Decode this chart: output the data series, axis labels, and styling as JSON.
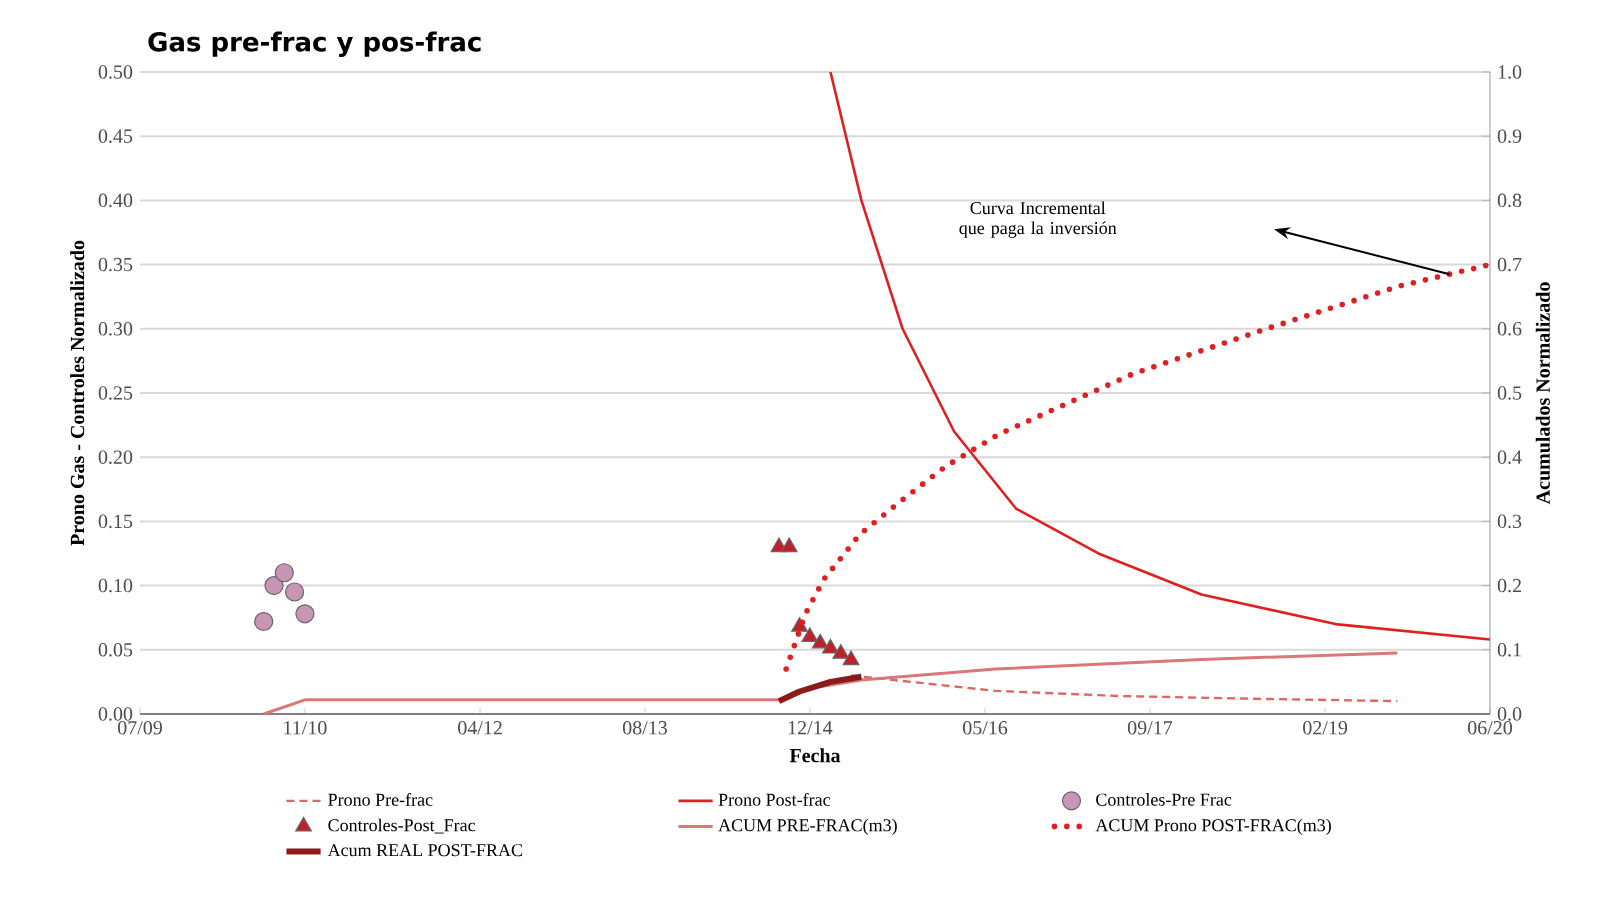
{
  "chart_data": {
    "type": "line",
    "title": "Gas pre-frac y pos-frac",
    "xlabel": "Fecha",
    "ylabel": "Prono Gas - Controles Normalizado",
    "y2label": "Acumulados Normalizado",
    "xlim": [
      "2009-07",
      "2020-06"
    ],
    "xticks": [
      {
        "value": "2009-07",
        "label": "07/09"
      },
      {
        "value": "2010-11",
        "label": "11/10"
      },
      {
        "value": "2012-04",
        "label": "04/12"
      },
      {
        "value": "2013-08",
        "label": "08/13"
      },
      {
        "value": "2014-12",
        "label": "12/14"
      },
      {
        "value": "2016-05",
        "label": "05/16"
      },
      {
        "value": "2017-09",
        "label": "09/17"
      },
      {
        "value": "2019-02",
        "label": "02/19"
      },
      {
        "value": "2020-06",
        "label": "06/20"
      }
    ],
    "ylim": [
      0,
      0.5
    ],
    "yticks": [
      {
        "value": 0,
        "label": "0.00"
      },
      {
        "value": 0.05,
        "label": "0.05"
      },
      {
        "value": 0.1,
        "label": "0.10"
      },
      {
        "value": 0.15,
        "label": "0.15"
      },
      {
        "value": 0.2,
        "label": "0.20"
      },
      {
        "value": 0.25,
        "label": "0.25"
      },
      {
        "value": 0.3,
        "label": "0.30"
      },
      {
        "value": 0.35,
        "label": "0.35"
      },
      {
        "value": 0.4,
        "label": "0.40"
      },
      {
        "value": 0.45,
        "label": "0.45"
      },
      {
        "value": 0.5,
        "label": "0.50"
      }
    ],
    "y2lim": [
      0,
      1
    ],
    "y2ticks": [
      {
        "value": 0,
        "label": "0.0"
      },
      0.1,
      0.2,
      0.3,
      0.4,
      0.5,
      0.6,
      0.7,
      0.8,
      0.9,
      {
        "value": 1,
        "label": "1.0"
      }
    ],
    "grid": "y",
    "legend": "bottom",
    "series": [
      {
        "name": "Prono Pre-frac",
        "type": "line",
        "line_style": "dashed",
        "color": "#e06666",
        "x": [
          "2015-04",
          "2015-11",
          "2016-06",
          "2017-06",
          "2018-06",
          "2019-09"
        ],
        "values": [
          0.03,
          0.024,
          0.018,
          0.014,
          0.012,
          0.01
        ]
      },
      {
        "name": "Prono Post-frac",
        "type": "line",
        "line_style": "solid",
        "color": "#e02020",
        "x": [
          "2015-02",
          "2015-05",
          "2015-09",
          "2016-02",
          "2016-08",
          "2017-04",
          "2018-02",
          "2019-03",
          "2020-06"
        ],
        "values": [
          0.5,
          0.4,
          0.3,
          0.22,
          0.16,
          0.125,
          0.093,
          0.07,
          0.058
        ]
      },
      {
        "name": "Controles-Pre Frac",
        "type": "scatter",
        "marker": "circle",
        "color": "#c896b4",
        "x": [
          "2010-07",
          "2010-08",
          "2010-09",
          "2010-10",
          "2010-11"
        ],
        "values": [
          0.072,
          0.1,
          0.11,
          0.095,
          0.078
        ]
      },
      {
        "name": "Controles-Post_Frac",
        "type": "scatter",
        "marker": "triangle",
        "color": "#c0202a",
        "x": [
          "2014-09",
          "2014-10",
          "2014-11",
          "2014-12",
          "2015-01",
          "2015-02",
          "2015-03",
          "2015-04"
        ],
        "values": [
          0.13,
          0.13,
          0.068,
          0.06,
          0.055,
          0.051,
          0.047,
          0.042
        ]
      },
      {
        "name": "ACUM PRE-FRAC(m3)",
        "type": "line",
        "line_style": "solid",
        "axis": "y2",
        "color": "#d87878",
        "x": [
          "2010-07",
          "2010-11",
          "2014-09",
          "2014-12",
          "2015-05",
          "2016-06",
          "2018-02",
          "2019-09"
        ],
        "values": [
          0,
          0.022,
          0.022,
          0.04,
          0.053,
          0.07,
          0.085,
          0.095
        ]
      },
      {
        "name": "ACUM Prono POST-FRAC(m3)",
        "type": "line",
        "line_style": "dotted",
        "axis": "y2",
        "color": "#e02020",
        "x": [
          "2014-09-22",
          "2014-11-18",
          "2015-01-12",
          "2015-04-27",
          "2015-08-22",
          "2016-01-07",
          "2016-06-12",
          "2017-07-12",
          "2018-08-10",
          "2019-09-10",
          "2020-06"
        ],
        "values": [
          0.07,
          0.156,
          0.21,
          0.28,
          0.33,
          0.386,
          0.436,
          0.53,
          0.6,
          0.667,
          0.7
        ]
      },
      {
        "name": "Acum REAL POST-FRAC",
        "type": "line",
        "line_style": "solid",
        "axis": "y2",
        "color": "#8b1a1a",
        "x": [
          "2014-09",
          "2014-11",
          "2015-02",
          "2015-05"
        ],
        "values": [
          0.02,
          0.035,
          0.05,
          0.058
        ]
      }
    ],
    "annotations": [
      "Curva Incremental que paga la inversión"
    ]
  }
}
